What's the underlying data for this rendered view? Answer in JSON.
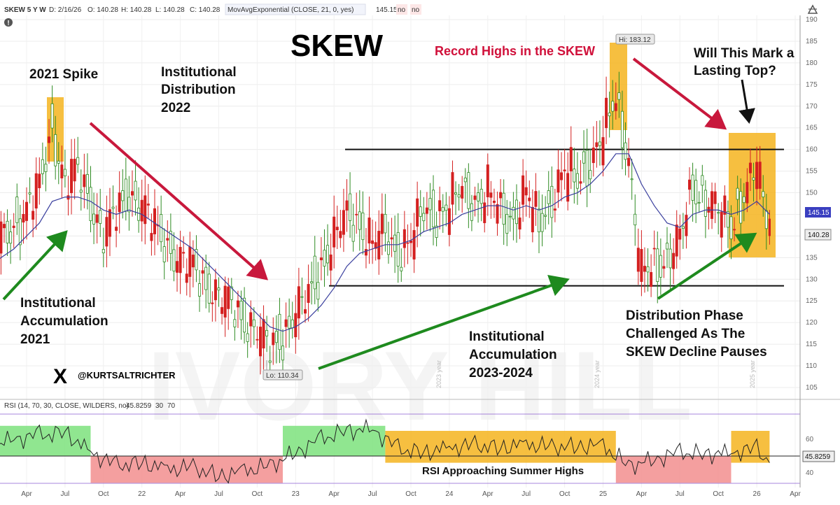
{
  "header": {
    "symbol": "SKEW 5 Y W",
    "date": "D: 2/16/26",
    "open": "O: 140.28",
    "high": "H: 140.28",
    "low": "L: 140.28",
    "close": "C: 140.28",
    "indicator": "MovAvgExponential (CLOSE, 21, 0, yes)",
    "indicator_value": "145.15",
    "flag1": "no",
    "flag2": "no"
  },
  "rsi_header": {
    "label": "RSI (14, 70, 30, CLOSE, WILDERS, no)",
    "value": "45.8259",
    "lo": "30",
    "hi": "70"
  },
  "annotations": {
    "title": "SKEW",
    "spike": "2021 Spike",
    "distribution": [
      "Institutional",
      "Distribution",
      "2022"
    ],
    "record": "Record Highs in the SKEW",
    "top": [
      "Will This Mark a",
      "Lasting Top?"
    ],
    "accum2021": [
      "Institutional",
      "Accumulation",
      "2021"
    ],
    "accum2324": [
      "Institutional",
      "Accumulation",
      "2023-2024"
    ],
    "phase": [
      "Distribution Phase",
      "Challenged As The",
      "SKEW Decline Pauses"
    ],
    "rsi_note": "RSI Approaching Summer Highs",
    "handle": "@KURTSALTRICHTER",
    "x_logo": "X"
  },
  "price_labels": {
    "hi": "Hi: 183.12",
    "lo": "Lo: 110.34",
    "ema_tag": "145.15",
    "close_tag": "140.28",
    "rsi_tag": "45.8259"
  },
  "year_markers": [
    "2023 year",
    "2024 year",
    "2025 year"
  ],
  "icons": {
    "settings": "gear-icon",
    "alert": "alert-icon"
  },
  "colors": {
    "up": "#2e8b22",
    "down": "#d42020",
    "ema": "#3a3f9e",
    "highlight_yellow": "#f5b41f",
    "rsi_green": "#7ce27c",
    "rsi_red": "#f28e8e",
    "arrow_green": "#1e8a1e",
    "arrow_red": "#c8183c",
    "record_text": "#d0103a"
  },
  "chart_data": [
    {
      "type": "candlestick",
      "title": "SKEW",
      "x_ticks": [
        "Apr",
        "Jul",
        "Oct",
        "22",
        "Apr",
        "Jul",
        "Oct",
        "23",
        "Apr",
        "Jul",
        "Oct",
        "24",
        "Apr",
        "Jul",
        "Oct",
        "25",
        "Apr",
        "Jul",
        "Oct",
        "26",
        "Apr"
      ],
      "y_ticks": [
        105,
        110,
        115,
        120,
        125,
        130,
        135,
        140,
        145,
        150,
        155,
        160,
        165,
        170,
        175,
        180,
        185,
        190
      ],
      "ylim": [
        102,
        191
      ],
      "horizontal_levels": [
        160,
        128.5
      ],
      "hi": 183.12,
      "lo": 110.34,
      "last_close": 140.28,
      "ema_last": 145.15,
      "series": [
        {
          "name": "SKEW close (approx. monthly)",
          "x": [
            "2021-01",
            "2021-02",
            "2021-03",
            "2021-04",
            "2021-05",
            "2021-06",
            "2021-07",
            "2021-08",
            "2021-09",
            "2021-10",
            "2021-11",
            "2021-12",
            "2022-01",
            "2022-02",
            "2022-03",
            "2022-04",
            "2022-05",
            "2022-06",
            "2022-07",
            "2022-08",
            "2022-09",
            "2022-10",
            "2022-11",
            "2022-12",
            "2023-01",
            "2023-02",
            "2023-03",
            "2023-04",
            "2023-05",
            "2023-06",
            "2023-07",
            "2023-08",
            "2023-09",
            "2023-10",
            "2023-11",
            "2023-12",
            "2024-01",
            "2024-02",
            "2024-03",
            "2024-04",
            "2024-05",
            "2024-06",
            "2024-07",
            "2024-08",
            "2024-09",
            "2024-10",
            "2024-11",
            "2024-12",
            "2025-01",
            "2025-02",
            "2025-03",
            "2025-04",
            "2025-05",
            "2025-06",
            "2025-07",
            "2025-08",
            "2025-09",
            "2025-10",
            "2025-11",
            "2025-12",
            "2026-01",
            "2026-02"
          ],
          "values": [
            137,
            139,
            142,
            146,
            151,
            165,
            152,
            155,
            148,
            140,
            145,
            150,
            147,
            142,
            138,
            134,
            133,
            129,
            126,
            124,
            121,
            118,
            114,
            117,
            122,
            126,
            133,
            139,
            145,
            143,
            138,
            141,
            136,
            139,
            146,
            145,
            147,
            151,
            148,
            150,
            146,
            144,
            150,
            143,
            148,
            155,
            153,
            157,
            163,
            172,
            158,
            131,
            133,
            135,
            139,
            151,
            149,
            146,
            142,
            150,
            156,
            140
          ]
        },
        {
          "name": "MovAvgExponential (CLOSE, 21)",
          "values": [
            133,
            135,
            137,
            140,
            143,
            148,
            149,
            149,
            148,
            146,
            145,
            146,
            145,
            143,
            141,
            139,
            137,
            134,
            131,
            128,
            125,
            122,
            119,
            118,
            119,
            121,
            124,
            128,
            133,
            136,
            137,
            138,
            138,
            139,
            141,
            142,
            143,
            145,
            146,
            147,
            147,
            146,
            147,
            146,
            147,
            149,
            150,
            152,
            155,
            159,
            159,
            152,
            147,
            143,
            142,
            145,
            146,
            146,
            145,
            146,
            148,
            145
          ]
        }
      ]
    },
    {
      "type": "line",
      "title": "RSI (14, 70, 30, CLOSE, WILDERS, no)",
      "y_ticks": [
        40,
        60
      ],
      "ylim": [
        30,
        75
      ],
      "reference_line": 50,
      "last": 45.8259,
      "zones": [
        {
          "name": "green",
          "from": "2021-01",
          "to": "2021-09"
        },
        {
          "name": "red",
          "from": "2021-09",
          "to": "2022-12"
        },
        {
          "name": "green",
          "from": "2022-12",
          "to": "2023-08"
        },
        {
          "name": "yellow",
          "from": "2023-08",
          "to": "2025-02"
        },
        {
          "name": "red",
          "from": "2025-02",
          "to": "2025-11"
        },
        {
          "name": "yellow",
          "from": "2025-11",
          "to": "2026-02"
        }
      ],
      "series": [
        {
          "name": "RSI",
          "x": [
            "2021-01",
            "2021-03",
            "2021-05",
            "2021-07",
            "2021-09",
            "2021-11",
            "2022-01",
            "2022-03",
            "2022-05",
            "2022-07",
            "2022-09",
            "2022-11",
            "2023-01",
            "2023-03",
            "2023-05",
            "2023-07",
            "2023-09",
            "2023-11",
            "2024-01",
            "2024-03",
            "2024-05",
            "2024-07",
            "2024-09",
            "2024-11",
            "2025-01",
            "2025-03",
            "2025-05",
            "2025-07",
            "2025-09",
            "2025-11",
            "2026-01",
            "2026-02"
          ],
          "values": [
            55,
            60,
            62,
            64,
            52,
            44,
            46,
            42,
            43,
            38,
            41,
            44,
            52,
            60,
            65,
            66,
            54,
            52,
            55,
            56,
            55,
            57,
            55,
            56,
            56,
            44,
            48,
            52,
            51,
            52,
            54,
            46
          ]
        }
      ]
    }
  ]
}
